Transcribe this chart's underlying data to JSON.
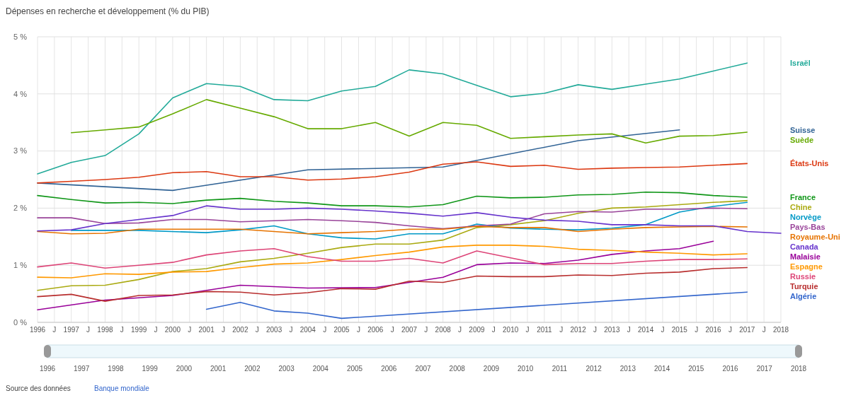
{
  "chart_data": {
    "type": "line",
    "title": "Dépenses en recherche et développement (% du PIB)",
    "xlim": [
      1996,
      2018
    ],
    "xticks": [
      1996,
      {
        "value": 1996.5,
        "label": "J"
      },
      1997,
      {
        "value": 1997.5,
        "label": "J"
      },
      1998,
      {
        "value": 1998.5,
        "label": "J"
      },
      1999,
      {
        "value": 1999.5,
        "label": "J"
      },
      2000,
      {
        "value": 2000.5,
        "label": "J"
      },
      2001,
      {
        "value": 2001.5,
        "label": "J"
      },
      2002,
      {
        "value": 2002.5,
        "label": "J"
      },
      2003,
      {
        "value": 2003.5,
        "label": "J"
      },
      2004,
      {
        "value": 2004.5,
        "label": "J"
      },
      2005,
      {
        "value": 2005.5,
        "label": "J"
      },
      2006,
      {
        "value": 2006.5,
        "label": "J"
      },
      2007,
      {
        "value": 2007.5,
        "label": "J"
      },
      2008,
      {
        "value": 2008.5,
        "label": "J"
      },
      2009,
      {
        "value": 2009.5,
        "label": "J"
      },
      2010,
      {
        "value": 2010.5,
        "label": "J"
      },
      2011,
      {
        "value": 2011.5,
        "label": "J"
      },
      2012,
      {
        "value": 2012.5,
        "label": "J"
      },
      2013,
      {
        "value": 2013.5,
        "label": "J"
      },
      2014,
      {
        "value": 2014.5,
        "label": "J"
      },
      2015,
      {
        "value": 2015.5,
        "label": "J"
      },
      2016,
      {
        "value": 2016.5,
        "label": "J"
      },
      2017,
      {
        "value": 2017.5,
        "label": "J"
      },
      2018
    ],
    "x2lim": [
      1996,
      2018
    ],
    "x2ticks": [
      1996,
      1997,
      1998,
      1999,
      2000,
      2001,
      2002,
      2003,
      2004,
      2005,
      2006,
      2007,
      2008,
      2009,
      2010,
      2011,
      2012,
      2013,
      2014,
      2015,
      2016,
      2017,
      2018
    ],
    "ylim": [
      0,
      5
    ],
    "yticks": [
      {
        "value": 0,
        "label": "0 %"
      },
      {
        "value": 1,
        "label": "1 %"
      },
      {
        "value": 2,
        "label": "2 %"
      },
      {
        "value": 3,
        "label": "3 %"
      },
      {
        "value": 4,
        "label": "4 %"
      },
      {
        "value": 5,
        "label": "5 %"
      }
    ],
    "grid": true,
    "legend": "right",
    "marker": "none",
    "line_style": "solid",
    "annotations": [
      "Source des données",
      "Banque mondiale"
    ],
    "series": [
      {
        "name": "Israël",
        "color": "#22aa99",
        "x": [
          1996,
          1997,
          1998,
          1999,
          2000,
          2001,
          2002,
          2003,
          2004,
          2005,
          2006,
          2007,
          2008,
          2009,
          2010,
          2011,
          2012,
          2013,
          2014,
          2015,
          2016,
          2017
        ],
        "values": [
          2.6,
          2.8,
          2.92,
          3.3,
          3.93,
          4.18,
          4.13,
          3.9,
          3.88,
          4.05,
          4.13,
          4.42,
          4.35,
          4.15,
          3.95,
          4.01,
          4.16,
          4.08,
          4.17,
          4.26,
          4.4,
          4.54
        ]
      },
      {
        "name": "Suisse",
        "color": "#316395",
        "x": [
          1996,
          2000,
          2004,
          2008,
          2012,
          2015
        ],
        "values": [
          2.44,
          2.31,
          2.67,
          2.72,
          3.18,
          3.37
        ]
      },
      {
        "name": "Suède",
        "color": "#66aa00",
        "x": [
          1997,
          1998,
          1999,
          2000,
          2001,
          2002,
          2003,
          2004,
          2005,
          2006,
          2007,
          2008,
          2009,
          2010,
          2011,
          2012,
          2013,
          2014,
          2015,
          2016,
          2017
        ],
        "values": [
          3.32,
          3.37,
          3.42,
          3.65,
          3.9,
          3.75,
          3.6,
          3.39,
          3.39,
          3.5,
          3.26,
          3.5,
          3.45,
          3.22,
          3.25,
          3.28,
          3.3,
          3.14,
          3.26,
          3.27,
          3.33
        ]
      },
      {
        "name": "États-Unis",
        "color": "#dc3912",
        "x": [
          1996,
          1997,
          1998,
          1999,
          2000,
          2001,
          2002,
          2003,
          2004,
          2005,
          2006,
          2007,
          2008,
          2009,
          2010,
          2011,
          2012,
          2013,
          2014,
          2015,
          2016,
          2017
        ],
        "values": [
          2.44,
          2.47,
          2.5,
          2.54,
          2.62,
          2.64,
          2.55,
          2.55,
          2.49,
          2.51,
          2.55,
          2.63,
          2.77,
          2.81,
          2.73,
          2.75,
          2.68,
          2.7,
          2.71,
          2.72,
          2.75,
          2.78
        ]
      },
      {
        "name": "France",
        "color": "#109618",
        "x": [
          1996,
          1997,
          1998,
          1999,
          2000,
          2001,
          2002,
          2003,
          2004,
          2005,
          2006,
          2007,
          2008,
          2009,
          2010,
          2011,
          2012,
          2013,
          2014,
          2015,
          2016,
          2017
        ],
        "values": [
          2.22,
          2.15,
          2.09,
          2.1,
          2.08,
          2.14,
          2.17,
          2.12,
          2.09,
          2.04,
          2.04,
          2.02,
          2.06,
          2.21,
          2.18,
          2.19,
          2.23,
          2.24,
          2.28,
          2.27,
          2.22,
          2.19
        ]
      },
      {
        "name": "Chine",
        "color": "#aaaa11",
        "x": [
          1996,
          1997,
          1998,
          1999,
          2000,
          2001,
          2002,
          2003,
          2004,
          2005,
          2006,
          2007,
          2008,
          2009,
          2010,
          2011,
          2012,
          2013,
          2014,
          2015,
          2016,
          2017
        ],
        "values": [
          0.56,
          0.64,
          0.65,
          0.75,
          0.89,
          0.94,
          1.06,
          1.12,
          1.21,
          1.31,
          1.37,
          1.37,
          1.44,
          1.66,
          1.71,
          1.78,
          1.91,
          2.0,
          2.02,
          2.06,
          2.1,
          2.13
        ]
      },
      {
        "name": "Norvège",
        "color": "#0099c6",
        "x": [
          1997,
          1999,
          2001,
          2002,
          2003,
          2004,
          2005,
          2006,
          2007,
          2008,
          2009,
          2010,
          2011,
          2012,
          2013,
          2014,
          2015,
          2016,
          2017
        ],
        "values": [
          1.61,
          1.61,
          1.57,
          1.62,
          1.69,
          1.55,
          1.48,
          1.46,
          1.55,
          1.55,
          1.72,
          1.65,
          1.63,
          1.62,
          1.65,
          1.71,
          1.93,
          2.03,
          2.1
        ]
      },
      {
        "name": "Pays-Bas",
        "color": "#994499",
        "x": [
          1996,
          1997,
          1998,
          1999,
          2000,
          2001,
          2002,
          2003,
          2004,
          2005,
          2006,
          2007,
          2008,
          2009,
          2010,
          2011,
          2012,
          2013,
          2014,
          2015,
          2016,
          2017
        ],
        "values": [
          1.83,
          1.83,
          1.73,
          1.74,
          1.8,
          1.8,
          1.76,
          1.78,
          1.8,
          1.78,
          1.75,
          1.69,
          1.64,
          1.69,
          1.72,
          1.9,
          1.94,
          1.93,
          1.98,
          1.98,
          2.0,
          1.99
        ]
      },
      {
        "name": "Royaume-Uni",
        "color": "#e67300",
        "x": [
          1996,
          1997,
          1998,
          1999,
          2000,
          2001,
          2002,
          2003,
          2004,
          2005,
          2006,
          2007,
          2008,
          2009,
          2010,
          2011,
          2012,
          2013,
          2014,
          2015,
          2016,
          2017
        ],
        "values": [
          1.59,
          1.55,
          1.56,
          1.63,
          1.63,
          1.63,
          1.63,
          1.59,
          1.55,
          1.57,
          1.59,
          1.63,
          1.63,
          1.68,
          1.66,
          1.66,
          1.59,
          1.63,
          1.66,
          1.67,
          1.68,
          1.67
        ]
      },
      {
        "name": "Canada",
        "color": "#6633cc",
        "x": [
          1996,
          1997,
          1998,
          1999,
          2000,
          2001,
          2002,
          2003,
          2004,
          2005,
          2006,
          2007,
          2008,
          2009,
          2010,
          2011,
          2012,
          2013,
          2014,
          2015,
          2016,
          2017,
          2018
        ],
        "values": [
          1.6,
          1.62,
          1.73,
          1.8,
          1.87,
          2.04,
          1.98,
          1.98,
          2.0,
          1.98,
          1.95,
          1.91,
          1.86,
          1.92,
          1.84,
          1.79,
          1.77,
          1.71,
          1.71,
          1.69,
          1.69,
          1.59,
          1.56
        ]
      },
      {
        "name": "Malaisie",
        "color": "#990099",
        "x": [
          1996,
          1998,
          2000,
          2002,
          2004,
          2006,
          2008,
          2009,
          2010,
          2011,
          2012,
          2013,
          2014,
          2015,
          2016
        ],
        "values": [
          0.22,
          0.39,
          0.47,
          0.65,
          0.6,
          0.61,
          0.79,
          1.01,
          1.04,
          1.03,
          1.09,
          1.19,
          1.25,
          1.29,
          1.42
        ]
      },
      {
        "name": "Espagne",
        "color": "#ff9900",
        "x": [
          1996,
          1997,
          1998,
          1999,
          2000,
          2001,
          2002,
          2003,
          2004,
          2005,
          2006,
          2007,
          2008,
          2009,
          2010,
          2011,
          2012,
          2013,
          2014,
          2015,
          2016,
          2017
        ],
        "values": [
          0.79,
          0.78,
          0.85,
          0.84,
          0.88,
          0.89,
          0.96,
          1.02,
          1.04,
          1.1,
          1.17,
          1.23,
          1.32,
          1.35,
          1.35,
          1.33,
          1.28,
          1.26,
          1.23,
          1.21,
          1.18,
          1.2
        ]
      },
      {
        "name": "Russie",
        "color": "#dd4477",
        "x": [
          1996,
          1997,
          1998,
          1999,
          2000,
          2001,
          2002,
          2003,
          2004,
          2005,
          2006,
          2007,
          2008,
          2009,
          2010,
          2011,
          2012,
          2013,
          2014,
          2015,
          2016,
          2017
        ],
        "values": [
          0.97,
          1.04,
          0.95,
          1.0,
          1.05,
          1.18,
          1.25,
          1.29,
          1.15,
          1.07,
          1.07,
          1.12,
          1.04,
          1.25,
          1.13,
          1.01,
          1.03,
          1.03,
          1.07,
          1.1,
          1.1,
          1.11
        ]
      },
      {
        "name": "Turquie",
        "color": "#b82e2e",
        "x": [
          1996,
          1997,
          1998,
          1999,
          2000,
          2001,
          2002,
          2003,
          2004,
          2005,
          2006,
          2007,
          2008,
          2009,
          2010,
          2011,
          2012,
          2013,
          2014,
          2015,
          2016,
          2017
        ],
        "values": [
          0.45,
          0.49,
          0.37,
          0.47,
          0.48,
          0.54,
          0.53,
          0.48,
          0.52,
          0.59,
          0.58,
          0.72,
          0.7,
          0.81,
          0.8,
          0.8,
          0.83,
          0.82,
          0.86,
          0.88,
          0.94,
          0.96
        ]
      },
      {
        "name": "Algérie",
        "color": "#3366cc",
        "x": [
          2001,
          2002,
          2003,
          2004,
          2005,
          2017
        ],
        "values": [
          0.23,
          0.35,
          0.2,
          0.16,
          0.07,
          0.53
        ]
      }
    ]
  }
}
